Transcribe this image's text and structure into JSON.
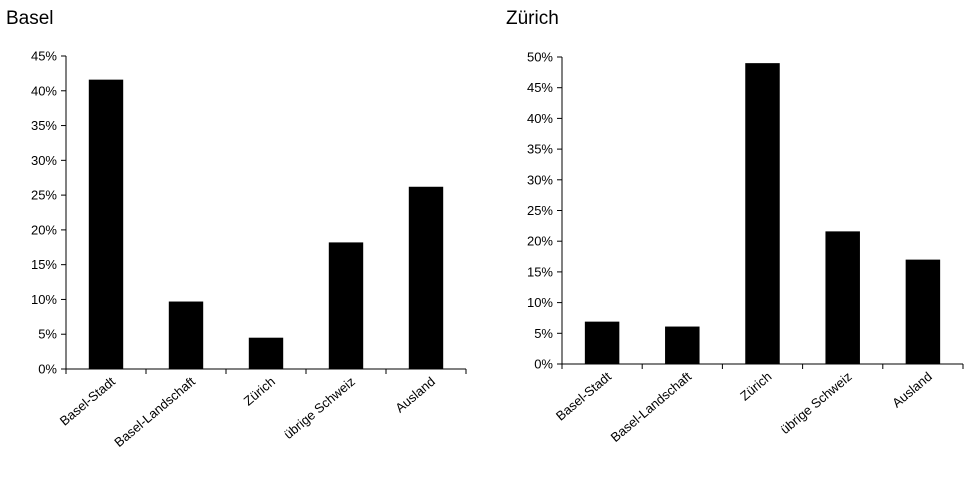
{
  "chart_data": [
    {
      "type": "bar",
      "title": "Basel",
      "categories": [
        "Basel-Stadt",
        "Basel-Landschaft",
        "Zürich",
        "übrige Schweiz",
        "Ausland"
      ],
      "values": [
        41.6,
        9.7,
        4.5,
        18.2,
        26.2
      ],
      "ylim": [
        0,
        45
      ],
      "yticks": [
        "0%",
        "5%",
        "10%",
        "15%",
        "20%",
        "25%",
        "30%",
        "35%",
        "40%",
        "45%"
      ],
      "xlabel": "",
      "ylabel": "",
      "bar_color": "#000000",
      "grid": false,
      "legend": "none"
    },
    {
      "type": "bar",
      "title": "Zürich",
      "categories": [
        "Basel-Stadt",
        "Basel-Landschaft",
        "Zürich",
        "übrige Schweiz",
        "Ausland"
      ],
      "values": [
        6.9,
        6.1,
        49.0,
        21.6,
        17.0
      ],
      "ylim": [
        0,
        50
      ],
      "yticks": [
        "0%",
        "5%",
        "10%",
        "15%",
        "20%",
        "25%",
        "30%",
        "35%",
        "40%",
        "45%",
        "50%"
      ],
      "xlabel": "",
      "ylabel": "",
      "bar_color": "#000000",
      "grid": false,
      "legend": "none"
    }
  ]
}
